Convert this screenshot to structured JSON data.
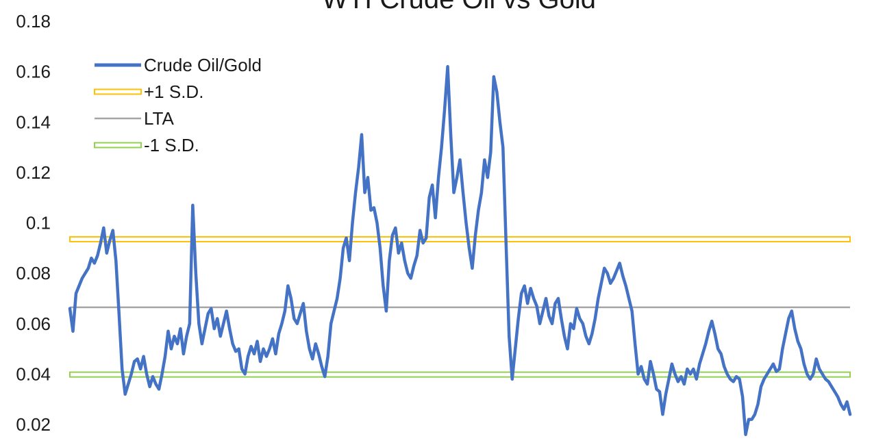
{
  "chart_data": {
    "type": "line",
    "title": "WTI Crude Oil vs Gold",
    "xlabel": "",
    "ylabel": "",
    "ylim": [
      0.02,
      0.18
    ],
    "y_ticks": [
      "0.02",
      "0.04",
      "0.06",
      "0.08",
      "0.1",
      "0.12",
      "0.14",
      "0.16",
      "0.18"
    ],
    "grid": false,
    "legend_position": "top-left",
    "series": [
      {
        "name": "Crude Oil/Gold",
        "color": "#4472C4",
        "values": [
          0.066,
          0.057,
          0.072,
          0.075,
          0.078,
          0.08,
          0.082,
          0.086,
          0.084,
          0.087,
          0.092,
          0.098,
          0.088,
          0.093,
          0.097,
          0.085,
          0.064,
          0.042,
          0.032,
          0.036,
          0.04,
          0.045,
          0.046,
          0.042,
          0.047,
          0.04,
          0.035,
          0.039,
          0.036,
          0.034,
          0.04,
          0.047,
          0.057,
          0.05,
          0.055,
          0.052,
          0.058,
          0.048,
          0.055,
          0.06,
          0.107,
          0.08,
          0.06,
          0.052,
          0.058,
          0.064,
          0.066,
          0.058,
          0.062,
          0.055,
          0.06,
          0.065,
          0.058,
          0.052,
          0.049,
          0.05,
          0.042,
          0.04,
          0.047,
          0.051,
          0.048,
          0.053,
          0.045,
          0.05,
          0.047,
          0.05,
          0.054,
          0.048,
          0.056,
          0.06,
          0.065,
          0.075,
          0.07,
          0.062,
          0.06,
          0.064,
          0.068,
          0.057,
          0.05,
          0.046,
          0.052,
          0.048,
          0.043,
          0.039,
          0.047,
          0.06,
          0.065,
          0.07,
          0.078,
          0.09,
          0.094,
          0.085,
          0.1,
          0.112,
          0.122,
          0.135,
          0.112,
          0.118,
          0.105,
          0.106,
          0.1,
          0.09,
          0.075,
          0.065,
          0.085,
          0.095,
          0.098,
          0.088,
          0.092,
          0.085,
          0.08,
          0.078,
          0.083,
          0.087,
          0.097,
          0.092,
          0.094,
          0.11,
          0.115,
          0.102,
          0.118,
          0.13,
          0.145,
          0.162,
          0.135,
          0.112,
          0.118,
          0.125,
          0.112,
          0.1,
          0.09,
          0.082,
          0.095,
          0.105,
          0.112,
          0.125,
          0.118,
          0.128,
          0.158,
          0.152,
          0.14,
          0.13,
          0.092,
          0.055,
          0.038,
          0.05,
          0.062,
          0.072,
          0.075,
          0.068,
          0.074,
          0.07,
          0.067,
          0.06,
          0.065,
          0.07,
          0.063,
          0.06,
          0.068,
          0.07,
          0.062,
          0.055,
          0.05,
          0.06,
          0.058,
          0.066,
          0.062,
          0.06,
          0.055,
          0.052,
          0.056,
          0.062,
          0.07,
          0.076,
          0.082,
          0.08,
          0.076,
          0.078,
          0.081,
          0.084,
          0.079,
          0.075,
          0.07,
          0.065,
          0.052,
          0.04,
          0.043,
          0.038,
          0.036,
          0.045,
          0.04,
          0.034,
          0.033,
          0.024,
          0.032,
          0.038,
          0.044,
          0.04,
          0.037,
          0.039,
          0.036,
          0.042,
          0.04,
          0.042,
          0.038,
          0.044,
          0.048,
          0.052,
          0.057,
          0.061,
          0.056,
          0.05,
          0.048,
          0.043,
          0.04,
          0.038,
          0.037,
          0.039,
          0.038,
          0.031,
          0.016,
          0.022,
          0.022,
          0.024,
          0.028,
          0.035,
          0.038,
          0.04,
          0.042,
          0.044,
          0.041,
          0.042,
          0.05,
          0.056,
          0.062,
          0.065,
          0.058,
          0.053,
          0.05,
          0.044,
          0.04,
          0.038,
          0.04,
          0.046,
          0.042,
          0.04,
          0.038,
          0.037,
          0.035,
          0.033,
          0.031,
          0.028,
          0.026,
          0.029,
          0.024
        ]
      },
      {
        "name": "+1 S.D.",
        "color": "#FFC000",
        "constant": 0.0935
      },
      {
        "name": "LTA",
        "color": "#A5A5A5",
        "constant": 0.0665
      },
      {
        "name": "-1 S.D.",
        "color": "#92D050",
        "constant": 0.0398
      }
    ]
  }
}
